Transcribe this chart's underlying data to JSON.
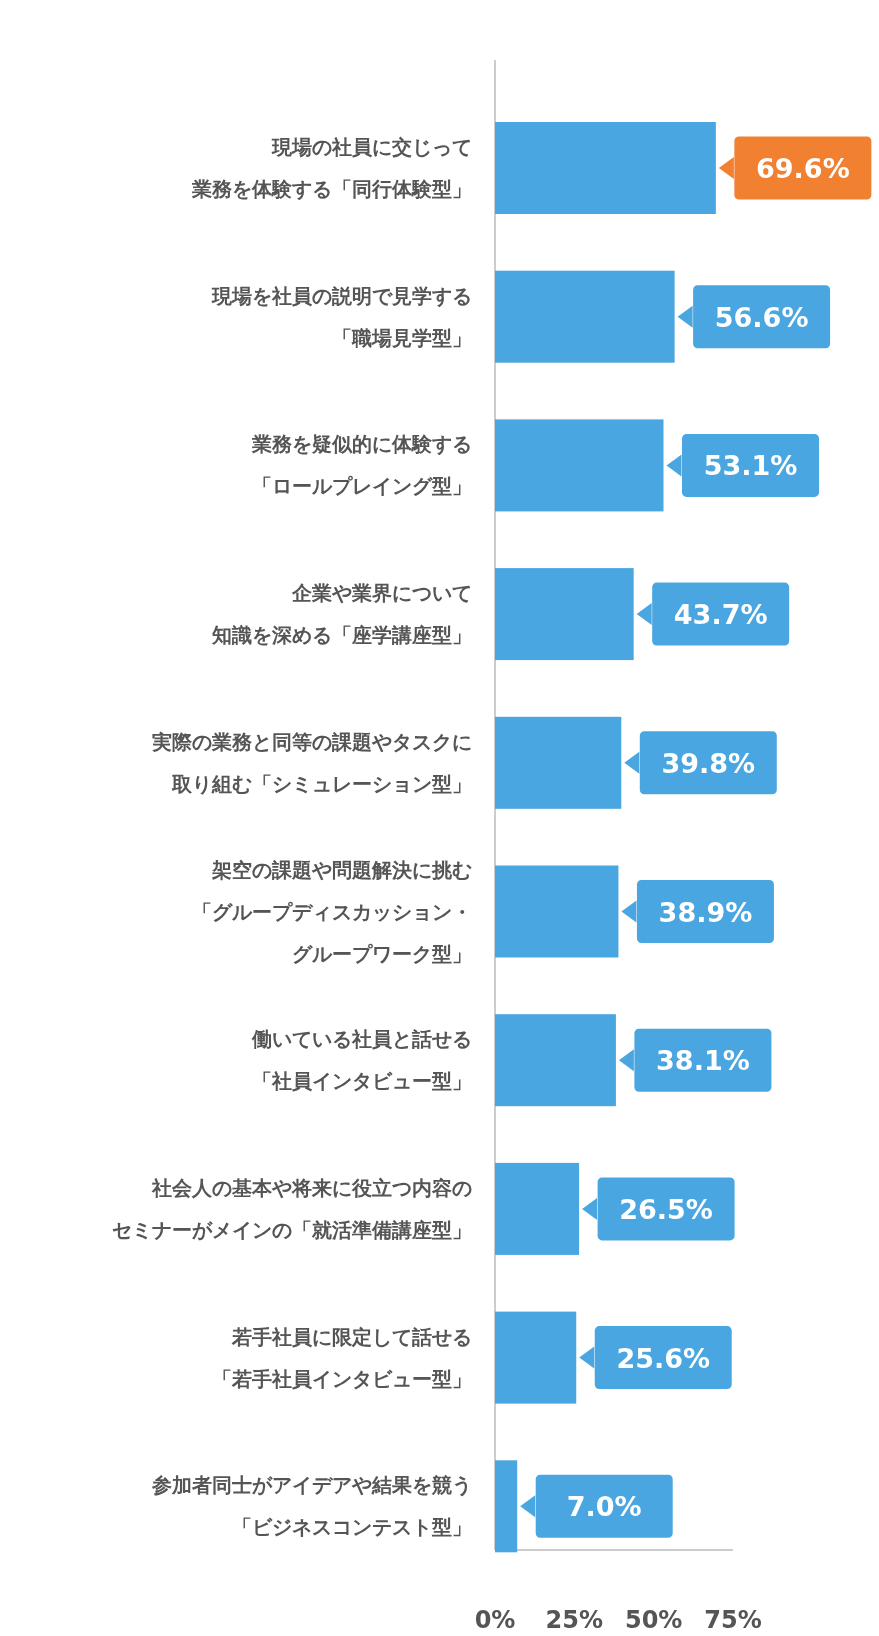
{
  "chart_data": {
    "type": "bar",
    "orientation": "horizontal",
    "categories": [
      "現場の社員に交じって業務を体験する「同行体験型」",
      "現場を社員の説明で見学する「職場見学型」",
      "業務を疑似的に体験する「ロールプレイング型」",
      "企業や業界について知識を深める「座学講座型」",
      "実際の業務と同等の課題やタスクに取り組む「シミュレーション型」",
      "架空の課題や問題解決に挑む「グループディスカッション・グループワーク型」",
      "働いている社員と話せる「社員インタビュー型」",
      "社会人の基本や将来に役立つ内容のセミナーがメインの「就活準備講座型」",
      "若手社員に限定して話せる「若手社員インタビュー型」",
      "参加者同士がアイデアや結果を競う「ビジネスコンテスト型」"
    ],
    "values": [
      69.6,
      56.6,
      53.1,
      43.7,
      39.8,
      38.9,
      38.1,
      26.5,
      25.6,
      7.0
    ],
    "value_labels": [
      "69.6%",
      "56.6%",
      "53.1%",
      "43.7%",
      "39.8%",
      "38.9%",
      "38.1%",
      "26.5%",
      "25.6%",
      "7.0%"
    ],
    "color": "#4aa6e0",
    "xlim": [
      0,
      75
    ],
    "xticks": [
      {
        "value": 0,
        "label": "0%"
      },
      {
        "value": 25,
        "label": "25%"
      },
      {
        "value": 50,
        "label": "50%"
      },
      {
        "value": 75,
        "label": "75%"
      }
    ],
    "grid": false
  }
}
